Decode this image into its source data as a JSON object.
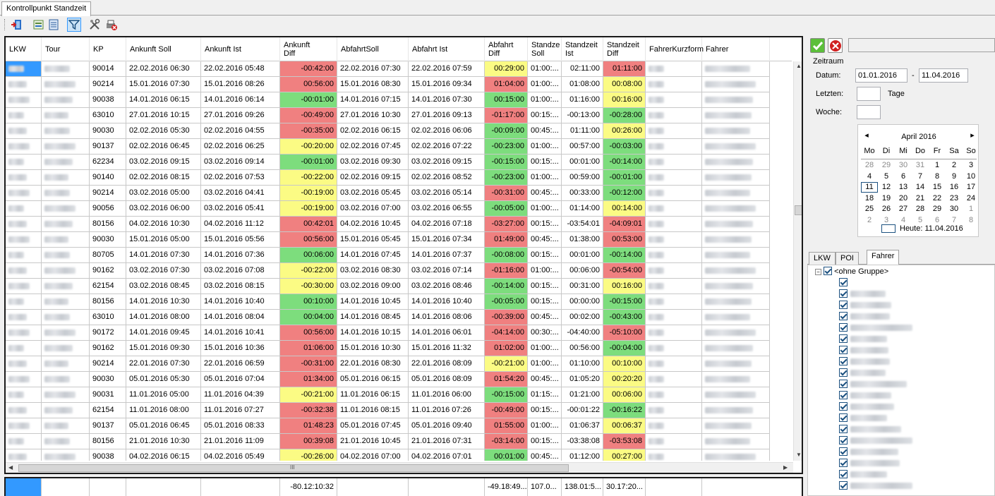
{
  "window": {
    "tab_title": "Kontrollpunkt Standzeit"
  },
  "toolbar": {
    "icons": [
      "exit-icon",
      "export-icon",
      "list-icon",
      "filter-icon",
      "settings-icon",
      "print-icon"
    ]
  },
  "grid": {
    "columns": [
      "LKW",
      "Tour",
      "KP",
      "Ankunft Soll",
      "Ankunft Ist",
      "Ankunft\nDiff",
      "AbfahrtSoll",
      "Abfahrt Ist",
      "Abfahrt\nDiff",
      "Standze\nSoll",
      "Standzeit\nIst",
      "Standzeit\nDiff",
      "FahrerKurzform",
      "Fahrer"
    ],
    "rows": [
      [
        "90014",
        "22.02.2016 06:30",
        "22.02.2016 05:48",
        "-00:42:00",
        "22.02.2016 07:30",
        "22.02.2016 07:59",
        "00:29:00",
        "01:00:...",
        "02:11:00",
        "01:11:00"
      ],
      [
        "90214",
        "15.01.2016 07:30",
        "15.01.2016 08:26",
        "00:56:00",
        "15.01.2016 08:30",
        "15.01.2016 09:34",
        "01:04:00",
        "01:00:...",
        "01:08:00",
        "00:08:00"
      ],
      [
        "90038",
        "14.01.2016 06:15",
        "14.01.2016 06:14",
        "-00:01:00",
        "14.01.2016 07:15",
        "14.01.2016 07:30",
        "00:15:00",
        "01:00:...",
        "01:16:00",
        "00:16:00"
      ],
      [
        "63010",
        "27.01.2016 10:15",
        "27.01.2016 09:26",
        "-00:49:00",
        "27.01.2016 10:30",
        "27.01.2016 09:13",
        "-01:17:00",
        "00:15:...",
        "-00:13:00",
        "-00:28:00"
      ],
      [
        "90030",
        "02.02.2016 05:30",
        "02.02.2016 04:55",
        "-00:35:00",
        "02.02.2016 06:15",
        "02.02.2016 06:06",
        "-00:09:00",
        "00:45:...",
        "01:11:00",
        "00:26:00"
      ],
      [
        "90137",
        "02.02.2016 06:45",
        "02.02.2016 06:25",
        "-00:20:00",
        "02.02.2016 07:45",
        "02.02.2016 07:22",
        "-00:23:00",
        "01:00:...",
        "00:57:00",
        "-00:03:00"
      ],
      [
        "62234",
        "03.02.2016 09:15",
        "03.02.2016 09:14",
        "-00:01:00",
        "03.02.2016 09:30",
        "03.02.2016 09:15",
        "-00:15:00",
        "00:15:...",
        "00:01:00",
        "-00:14:00"
      ],
      [
        "90140",
        "02.02.2016 08:15",
        "02.02.2016 07:53",
        "-00:22:00",
        "02.02.2016 09:15",
        "02.02.2016 08:52",
        "-00:23:00",
        "01:00:...",
        "00:59:00",
        "-00:01:00"
      ],
      [
        "90214",
        "03.02.2016 05:00",
        "03.02.2016 04:41",
        "-00:19:00",
        "03.02.2016 05:45",
        "03.02.2016 05:14",
        "-00:31:00",
        "00:45:...",
        "00:33:00",
        "-00:12:00"
      ],
      [
        "90056",
        "03.02.2016 06:00",
        "03.02.2016 05:41",
        "-00:19:00",
        "03.02.2016 07:00",
        "03.02.2016 06:55",
        "-00:05:00",
        "01:00:...",
        "01:14:00",
        "00:14:00"
      ],
      [
        "80156",
        "04.02.2016 10:30",
        "04.02.2016 11:12",
        "00:42:01",
        "04.02.2016 10:45",
        "04.02.2016 07:18",
        "-03:27:00",
        "00:15:...",
        "-03:54:01",
        "-04:09:01"
      ],
      [
        "90030",
        "15.01.2016 05:00",
        "15.01.2016 05:56",
        "00:56:00",
        "15.01.2016 05:45",
        "15.01.2016 07:34",
        "01:49:00",
        "00:45:...",
        "01:38:00",
        "00:53:00"
      ],
      [
        "80705",
        "14.01.2016 07:30",
        "14.01.2016 07:36",
        "00:06:00",
        "14.01.2016 07:45",
        "14.01.2016 07:37",
        "-00:08:00",
        "00:15:...",
        "00:01:00",
        "-00:14:00"
      ],
      [
        "90162",
        "03.02.2016 07:30",
        "03.02.2016 07:08",
        "-00:22:00",
        "03.02.2016 08:30",
        "03.02.2016 07:14",
        "-01:16:00",
        "01:00:...",
        "00:06:00",
        "-00:54:00"
      ],
      [
        "62154",
        "03.02.2016 08:45",
        "03.02.2016 08:15",
        "-00:30:00",
        "03.02.2016 09:00",
        "03.02.2016 08:46",
        "-00:14:00",
        "00:15:...",
        "00:31:00",
        "00:16:00"
      ],
      [
        "80156",
        "14.01.2016 10:30",
        "14.01.2016 10:40",
        "00:10:00",
        "14.01.2016 10:45",
        "14.01.2016 10:40",
        "-00:05:00",
        "00:15:...",
        "00:00:00",
        "-00:15:00"
      ],
      [
        "63010",
        "14.01.2016 08:00",
        "14.01.2016 08:04",
        "00:04:00",
        "14.01.2016 08:45",
        "14.01.2016 08:06",
        "-00:39:00",
        "00:45:...",
        "00:02:00",
        "-00:43:00"
      ],
      [
        "90172",
        "14.01.2016 09:45",
        "14.01.2016 10:41",
        "00:56:00",
        "14.01.2016 10:15",
        "14.01.2016 06:01",
        "-04:14:00",
        "00:30:...",
        "-04:40:00",
        "-05:10:00"
      ],
      [
        "90162",
        "15.01.2016 09:30",
        "15.01.2016 10:36",
        "01:06:00",
        "15.01.2016 10:30",
        "15.01.2016 11:32",
        "01:02:00",
        "01:00:...",
        "00:56:00",
        "-00:04:00"
      ],
      [
        "90214",
        "22.01.2016 07:30",
        "22.01.2016 06:59",
        "-00:31:00",
        "22.01.2016 08:30",
        "22.01.2016 08:09",
        "-00:21:00",
        "01:00:...",
        "01:10:00",
        "00:10:00"
      ],
      [
        "90030",
        "05.01.2016 05:30",
        "05.01.2016 07:04",
        "01:34:00",
        "05.01.2016 06:15",
        "05.01.2016 08:09",
        "01:54:20",
        "00:45:...",
        "01:05:20",
        "00:20:20"
      ],
      [
        "90031",
        "11.01.2016 05:00",
        "11.01.2016 04:39",
        "-00:21:00",
        "11.01.2016 06:15",
        "11.01.2016 06:00",
        "-00:15:00",
        "01:15:...",
        "01:21:00",
        "00:06:00"
      ],
      [
        "62154",
        "11.01.2016 08:00",
        "11.01.2016 07:27",
        "-00:32:38",
        "11.01.2016 08:15",
        "11.01.2016 07:26",
        "-00:49:00",
        "00:15:...",
        "-00:01:22",
        "-00:16:22"
      ],
      [
        "90137",
        "05.01.2016 06:45",
        "05.01.2016 08:33",
        "01:48:23",
        "05.01.2016 07:45",
        "05.01.2016 09:40",
        "01:55:00",
        "01:00:...",
        "01:06:37",
        "00:06:37"
      ],
      [
        "80156",
        "21.01.2016 10:30",
        "21.01.2016 11:09",
        "00:39:08",
        "21.01.2016 10:45",
        "21.01.2016 07:31",
        "-03:14:00",
        "00:15:...",
        "-03:38:08",
        "-03:53:08"
      ],
      [
        "90038",
        "04.02.2016 06:15",
        "04.02.2016 05:49",
        "-00:26:00",
        "04.02.2016 07:00",
        "04.02.2016 07:01",
        "00:01:00",
        "00:45:...",
        "01:12:00",
        "00:27:00"
      ]
    ],
    "colors": [
      [
        "red",
        "yel",
        "red"
      ],
      [
        "red",
        "red",
        "yel"
      ],
      [
        "grn",
        "grn",
        "yel"
      ],
      [
        "red",
        "red",
        "grn"
      ],
      [
        "red",
        "grn",
        "yel"
      ],
      [
        "yel",
        "grn",
        "grn"
      ],
      [
        "grn",
        "grn",
        "grn"
      ],
      [
        "yel",
        "grn",
        "grn"
      ],
      [
        "yel",
        "red",
        "grn"
      ],
      [
        "yel",
        "grn",
        "yel"
      ],
      [
        "red",
        "red",
        "red"
      ],
      [
        "red",
        "red",
        "red"
      ],
      [
        "grn",
        "grn",
        "grn"
      ],
      [
        "yel",
        "red",
        "red"
      ],
      [
        "yel",
        "grn",
        "yel"
      ],
      [
        "grn",
        "grn",
        "grn"
      ],
      [
        "grn",
        "red",
        "grn"
      ],
      [
        "red",
        "red",
        "red"
      ],
      [
        "red",
        "red",
        "grn"
      ],
      [
        "red",
        "yel",
        "yel"
      ],
      [
        "red",
        "red",
        "yel"
      ],
      [
        "yel",
        "grn",
        "yel"
      ],
      [
        "red",
        "red",
        "grn"
      ],
      [
        "red",
        "red",
        "yel"
      ],
      [
        "red",
        "red",
        "red"
      ],
      [
        "yel",
        "grn",
        "yel"
      ]
    ],
    "hscroll_label": "III"
  },
  "summary": {
    "ankunft_diff": "-80.12:10:32",
    "abfahrt_diff": "-49.18:49...",
    "standzeit_soll": "107.0...",
    "standzeit_ist": "138.01:5...",
    "standzeit_diff": "30.17:20..."
  },
  "colors": {
    "red": "#f08080",
    "green": "#7ddd7d",
    "yellow": "#fbfb84",
    "selection": "#3399ff"
  },
  "right": {
    "group_title": "Zeitraum",
    "datum_label": "Datum:",
    "date_from": "01.01.2016",
    "date_sep": "-",
    "date_to": "11.04.2016",
    "letzten_label": "Letzten:",
    "tage_label": "Tage",
    "woche_label": "Woche:",
    "calendar": {
      "month": "April 2016",
      "weekdays": [
        "Mo",
        "Di",
        "Mi",
        "Do",
        "Fr",
        "Sa",
        "So"
      ],
      "weeks": [
        [
          "28",
          "29",
          "30",
          "31",
          "1",
          "2",
          "3"
        ],
        [
          "4",
          "5",
          "6",
          "7",
          "8",
          "9",
          "10"
        ],
        [
          "11",
          "12",
          "13",
          "14",
          "15",
          "16",
          "17"
        ],
        [
          "18",
          "19",
          "20",
          "21",
          "22",
          "23",
          "24"
        ],
        [
          "25",
          "26",
          "27",
          "28",
          "29",
          "30",
          "1"
        ],
        [
          "2",
          "3",
          "4",
          "5",
          "6",
          "7",
          "8"
        ]
      ],
      "today": "Heute: 11.04.2016"
    },
    "tabs": [
      "LKW",
      "POI",
      "Fahrer"
    ],
    "tree_root": "<ohne Gruppe>"
  }
}
